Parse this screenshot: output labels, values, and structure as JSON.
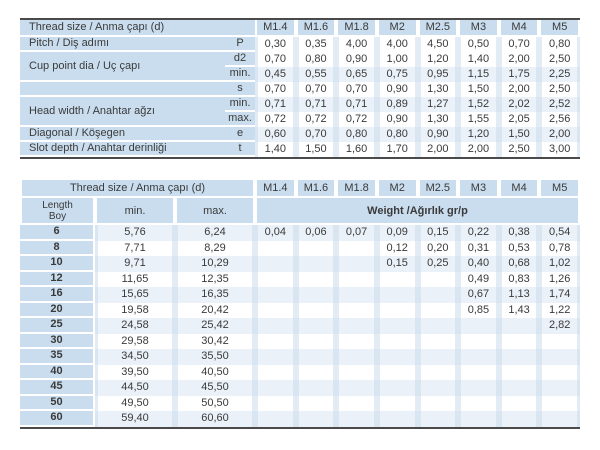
{
  "colors": {
    "header_blue": "#c9ddee",
    "row_tint": "#eaf1f8",
    "gutter": "#e3ecf5",
    "gutter_tint": "#d9e5f0",
    "dark_border": "#4a4a4a",
    "text": "#3a3a3a"
  },
  "table1": {
    "title": "Thread size / Anma çapı (d)",
    "sizes": [
      "M1.4",
      "M1.6",
      "M1.8",
      "M2",
      "M2.5",
      "M3",
      "M4",
      "M5"
    ],
    "rows": [
      {
        "label": "Pitch / Diş adımı",
        "rowspan": 1,
        "sym": "P",
        "tint": false,
        "values": [
          "0,30",
          "0,35",
          "4,00",
          "4,00",
          "4,50",
          "0,50",
          "0,70",
          "0,80"
        ]
      },
      {
        "label": "Cup point dia / Uç çapı",
        "rowspan": 2,
        "sym": "d2",
        "tint": false,
        "values": [
          "0,70",
          "0,80",
          "0,90",
          "1,00",
          "1,20",
          "1,40",
          "2,00",
          "2,50"
        ]
      },
      {
        "label": null,
        "sym": "min.",
        "tint": true,
        "values": [
          "0,45",
          "0,55",
          "0,65",
          "0,75",
          "0,95",
          "1,15",
          "1,75",
          "2,25"
        ]
      },
      {
        "label": "",
        "rowspan": 1,
        "sym": "s",
        "tint": false,
        "values": [
          "0,70",
          "0,70",
          "0,70",
          "0,90",
          "1,30",
          "1,50",
          "2,00",
          "2,50"
        ]
      },
      {
        "label": "Head width / Anahtar ağzı",
        "rowspan": 2,
        "sym": "min.",
        "tint": true,
        "values": [
          "0,71",
          "0,71",
          "0,71",
          "0,89",
          "1,27",
          "1,52",
          "2,02",
          "2,52"
        ]
      },
      {
        "label": null,
        "sym": "max.",
        "tint": false,
        "values": [
          "0,72",
          "0,72",
          "0,72",
          "0,90",
          "1,30",
          "1,55",
          "2,05",
          "2,56"
        ]
      },
      {
        "label": "Diagonal / Köşegen",
        "rowspan": 1,
        "sym": "e",
        "tint": true,
        "values": [
          "0,60",
          "0,70",
          "0,80",
          "0,80",
          "0,90",
          "1,20",
          "1,50",
          "2,00"
        ]
      },
      {
        "label": "Slot depth / Anahtar derinliği",
        "rowspan": 1,
        "sym": "t",
        "tint": false,
        "values": [
          "1,40",
          "1,50",
          "1,60",
          "1,70",
          "2,00",
          "2,00",
          "2,50",
          "3,00"
        ]
      }
    ]
  },
  "table2": {
    "title": "Thread size / Anma çapı (d)",
    "sizes": [
      "M1.4",
      "M1.6",
      "M1.8",
      "M2",
      "M2.5",
      "M3",
      "M4",
      "M5"
    ],
    "length_label_en": "Length",
    "length_label_tr": "Boy",
    "min_label": "min.",
    "max_label": "max.",
    "weight_label": "Weight /Ağırlık gr/p",
    "rows": [
      {
        "length": "6",
        "min": "5,76",
        "max": "6,24",
        "tint": true,
        "weights": [
          "0,04",
          "0,06",
          "0,07",
          "0,09",
          "0,15",
          "0,22",
          "0,38",
          "0,54"
        ]
      },
      {
        "length": "8",
        "min": "7,71",
        "max": "8,29",
        "tint": false,
        "weights": [
          "",
          "",
          "",
          "0,12",
          "0,20",
          "0,31",
          "0,53",
          "0,78"
        ]
      },
      {
        "length": "10",
        "min": "9,71",
        "max": "10,29",
        "tint": true,
        "weights": [
          "",
          "",
          "",
          "0,15",
          "0,25",
          "0,40",
          "0,68",
          "1,02"
        ]
      },
      {
        "length": "12",
        "min": "11,65",
        "max": "12,35",
        "tint": false,
        "weights": [
          "",
          "",
          "",
          "",
          "",
          "0,49",
          "0,83",
          "1,26"
        ]
      },
      {
        "length": "16",
        "min": "15,65",
        "max": "16,35",
        "tint": true,
        "weights": [
          "",
          "",
          "",
          "",
          "",
          "0,67",
          "1,13",
          "1,74"
        ]
      },
      {
        "length": "20",
        "min": "19,58",
        "max": "20,42",
        "tint": false,
        "weights": [
          "",
          "",
          "",
          "",
          "",
          "0,85",
          "1,43",
          "1,22"
        ]
      },
      {
        "length": "25",
        "min": "24,58",
        "max": "25,42",
        "tint": true,
        "weights": [
          "",
          "",
          "",
          "",
          "",
          "",
          "",
          "2,82"
        ]
      },
      {
        "length": "30",
        "min": "29,58",
        "max": "30,42",
        "tint": false,
        "weights": [
          "",
          "",
          "",
          "",
          "",
          "",
          "",
          ""
        ]
      },
      {
        "length": "35",
        "min": "34,50",
        "max": "35,50",
        "tint": true,
        "weights": [
          "",
          "",
          "",
          "",
          "",
          "",
          "",
          ""
        ]
      },
      {
        "length": "40",
        "min": "39,50",
        "max": "40,50",
        "tint": false,
        "weights": [
          "",
          "",
          "",
          "",
          "",
          "",
          "",
          ""
        ]
      },
      {
        "length": "45",
        "min": "44,50",
        "max": "45,50",
        "tint": true,
        "weights": [
          "",
          "",
          "",
          "",
          "",
          "",
          "",
          ""
        ]
      },
      {
        "length": "50",
        "min": "49,50",
        "max": "50,50",
        "tint": false,
        "weights": [
          "",
          "",
          "",
          "",
          "",
          "",
          "",
          ""
        ]
      },
      {
        "length": "60",
        "min": "59,40",
        "max": "60,60",
        "tint": true,
        "weights": [
          "",
          "",
          "",
          "",
          "",
          "",
          "",
          ""
        ]
      }
    ]
  }
}
